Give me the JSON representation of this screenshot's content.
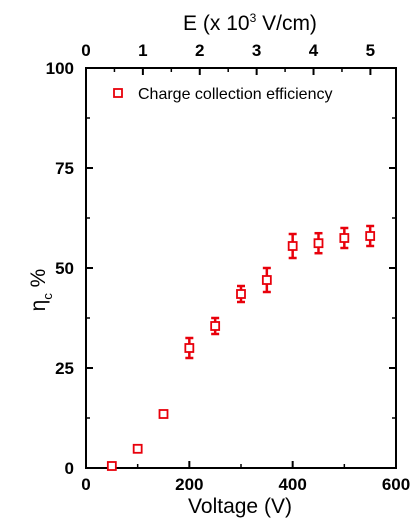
{
  "chart_data": {
    "type": "scatter",
    "xlabel": "Voltage (V)",
    "ylabel": {
      "main": "η",
      "sub": "c",
      "suffix": " %"
    },
    "top_axis_label": {
      "prefix": "E (x 10",
      "sup": "3",
      "suffix": " V/cm)"
    },
    "xlim": [
      0,
      600
    ],
    "ylim": [
      0,
      100
    ],
    "xticks": [
      0,
      200,
      400,
      600
    ],
    "yticks": [
      0,
      25,
      50,
      75,
      100
    ],
    "top_ticks": [
      0,
      1,
      2,
      3,
      4,
      5
    ],
    "top_axis_range": [
      0,
      5.45
    ],
    "legend_position": "top-left",
    "series": [
      {
        "name": "Charge collection efficiency",
        "color": "#e8000b",
        "marker": "open-square",
        "points": [
          {
            "x": 50,
            "y": 0.5,
            "err": 0
          },
          {
            "x": 100,
            "y": 4.8,
            "err": 0
          },
          {
            "x": 150,
            "y": 13.5,
            "err": 0
          },
          {
            "x": 200,
            "y": 30,
            "err": 2.5
          },
          {
            "x": 250,
            "y": 35.5,
            "err": 2
          },
          {
            "x": 300,
            "y": 43.5,
            "err": 2
          },
          {
            "x": 350,
            "y": 47,
            "err": 3
          },
          {
            "x": 400,
            "y": 55.5,
            "err": 3
          },
          {
            "x": 450,
            "y": 56.2,
            "err": 2.5
          },
          {
            "x": 500,
            "y": 57.5,
            "err": 2.5
          },
          {
            "x": 550,
            "y": 58,
            "err": 2.5
          }
        ]
      }
    ]
  }
}
